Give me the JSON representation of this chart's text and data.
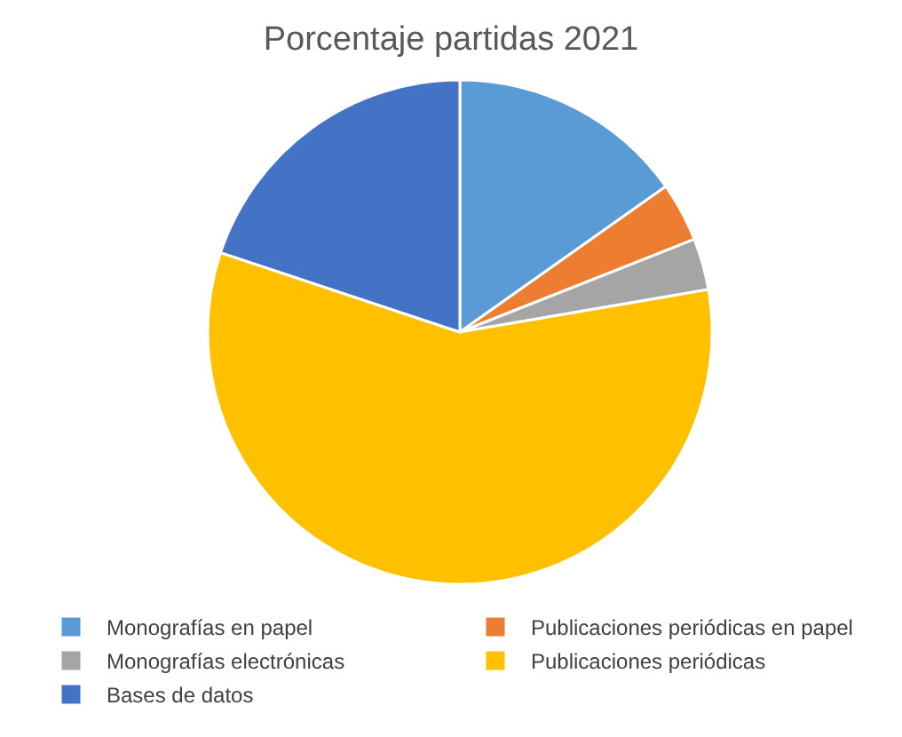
{
  "chart_data": {
    "type": "pie",
    "title": "Porcentaje partidas 2021",
    "categories": [
      "Monografías en papel",
      "Publicaciones periódicas en papel",
      "Monografías electrónicas",
      "Publicaciones periódicas",
      "Bases de datos"
    ],
    "values": [
      15.2,
      3.8,
      3.3,
      57.8,
      19.9
    ],
    "colors": [
      "#5b9bd5",
      "#ed7d31",
      "#a5a5a5",
      "#ffc000",
      "#4472c4"
    ],
    "legend": "bottom"
  }
}
